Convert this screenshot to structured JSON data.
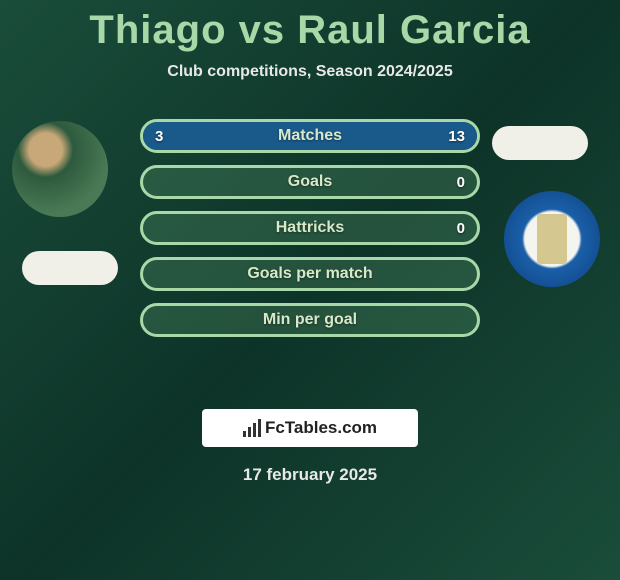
{
  "title": "Thiago vs Raul Garcia",
  "subtitle": "Club competitions, Season 2024/2025",
  "date": "17 february 2025",
  "colors": {
    "accent": "#a8d8a8",
    "bar_fill": "#1a5a8a",
    "bar_outline": "#a8d8a8",
    "bar_bg": "rgba(80,140,100,0.35)",
    "text_light": "#d8e8c8"
  },
  "logo_text": "FcTables.com",
  "bars": [
    {
      "label": "Matches",
      "left_val": "3",
      "right_val": "13",
      "left_pct": 19,
      "right_pct": 81
    },
    {
      "label": "Goals",
      "left_val": "",
      "right_val": "0",
      "left_pct": 0,
      "right_pct": 0
    },
    {
      "label": "Hattricks",
      "left_val": "",
      "right_val": "0",
      "left_pct": 0,
      "right_pct": 0
    },
    {
      "label": "Goals per match",
      "left_val": "",
      "right_val": "",
      "left_pct": 0,
      "right_pct": 0
    },
    {
      "label": "Min per goal",
      "left_val": "",
      "right_val": "",
      "left_pct": 0,
      "right_pct": 0
    }
  ],
  "avatars": {
    "left_name": "thiago-photo",
    "right_name": "raul-garcia-club-badge"
  }
}
